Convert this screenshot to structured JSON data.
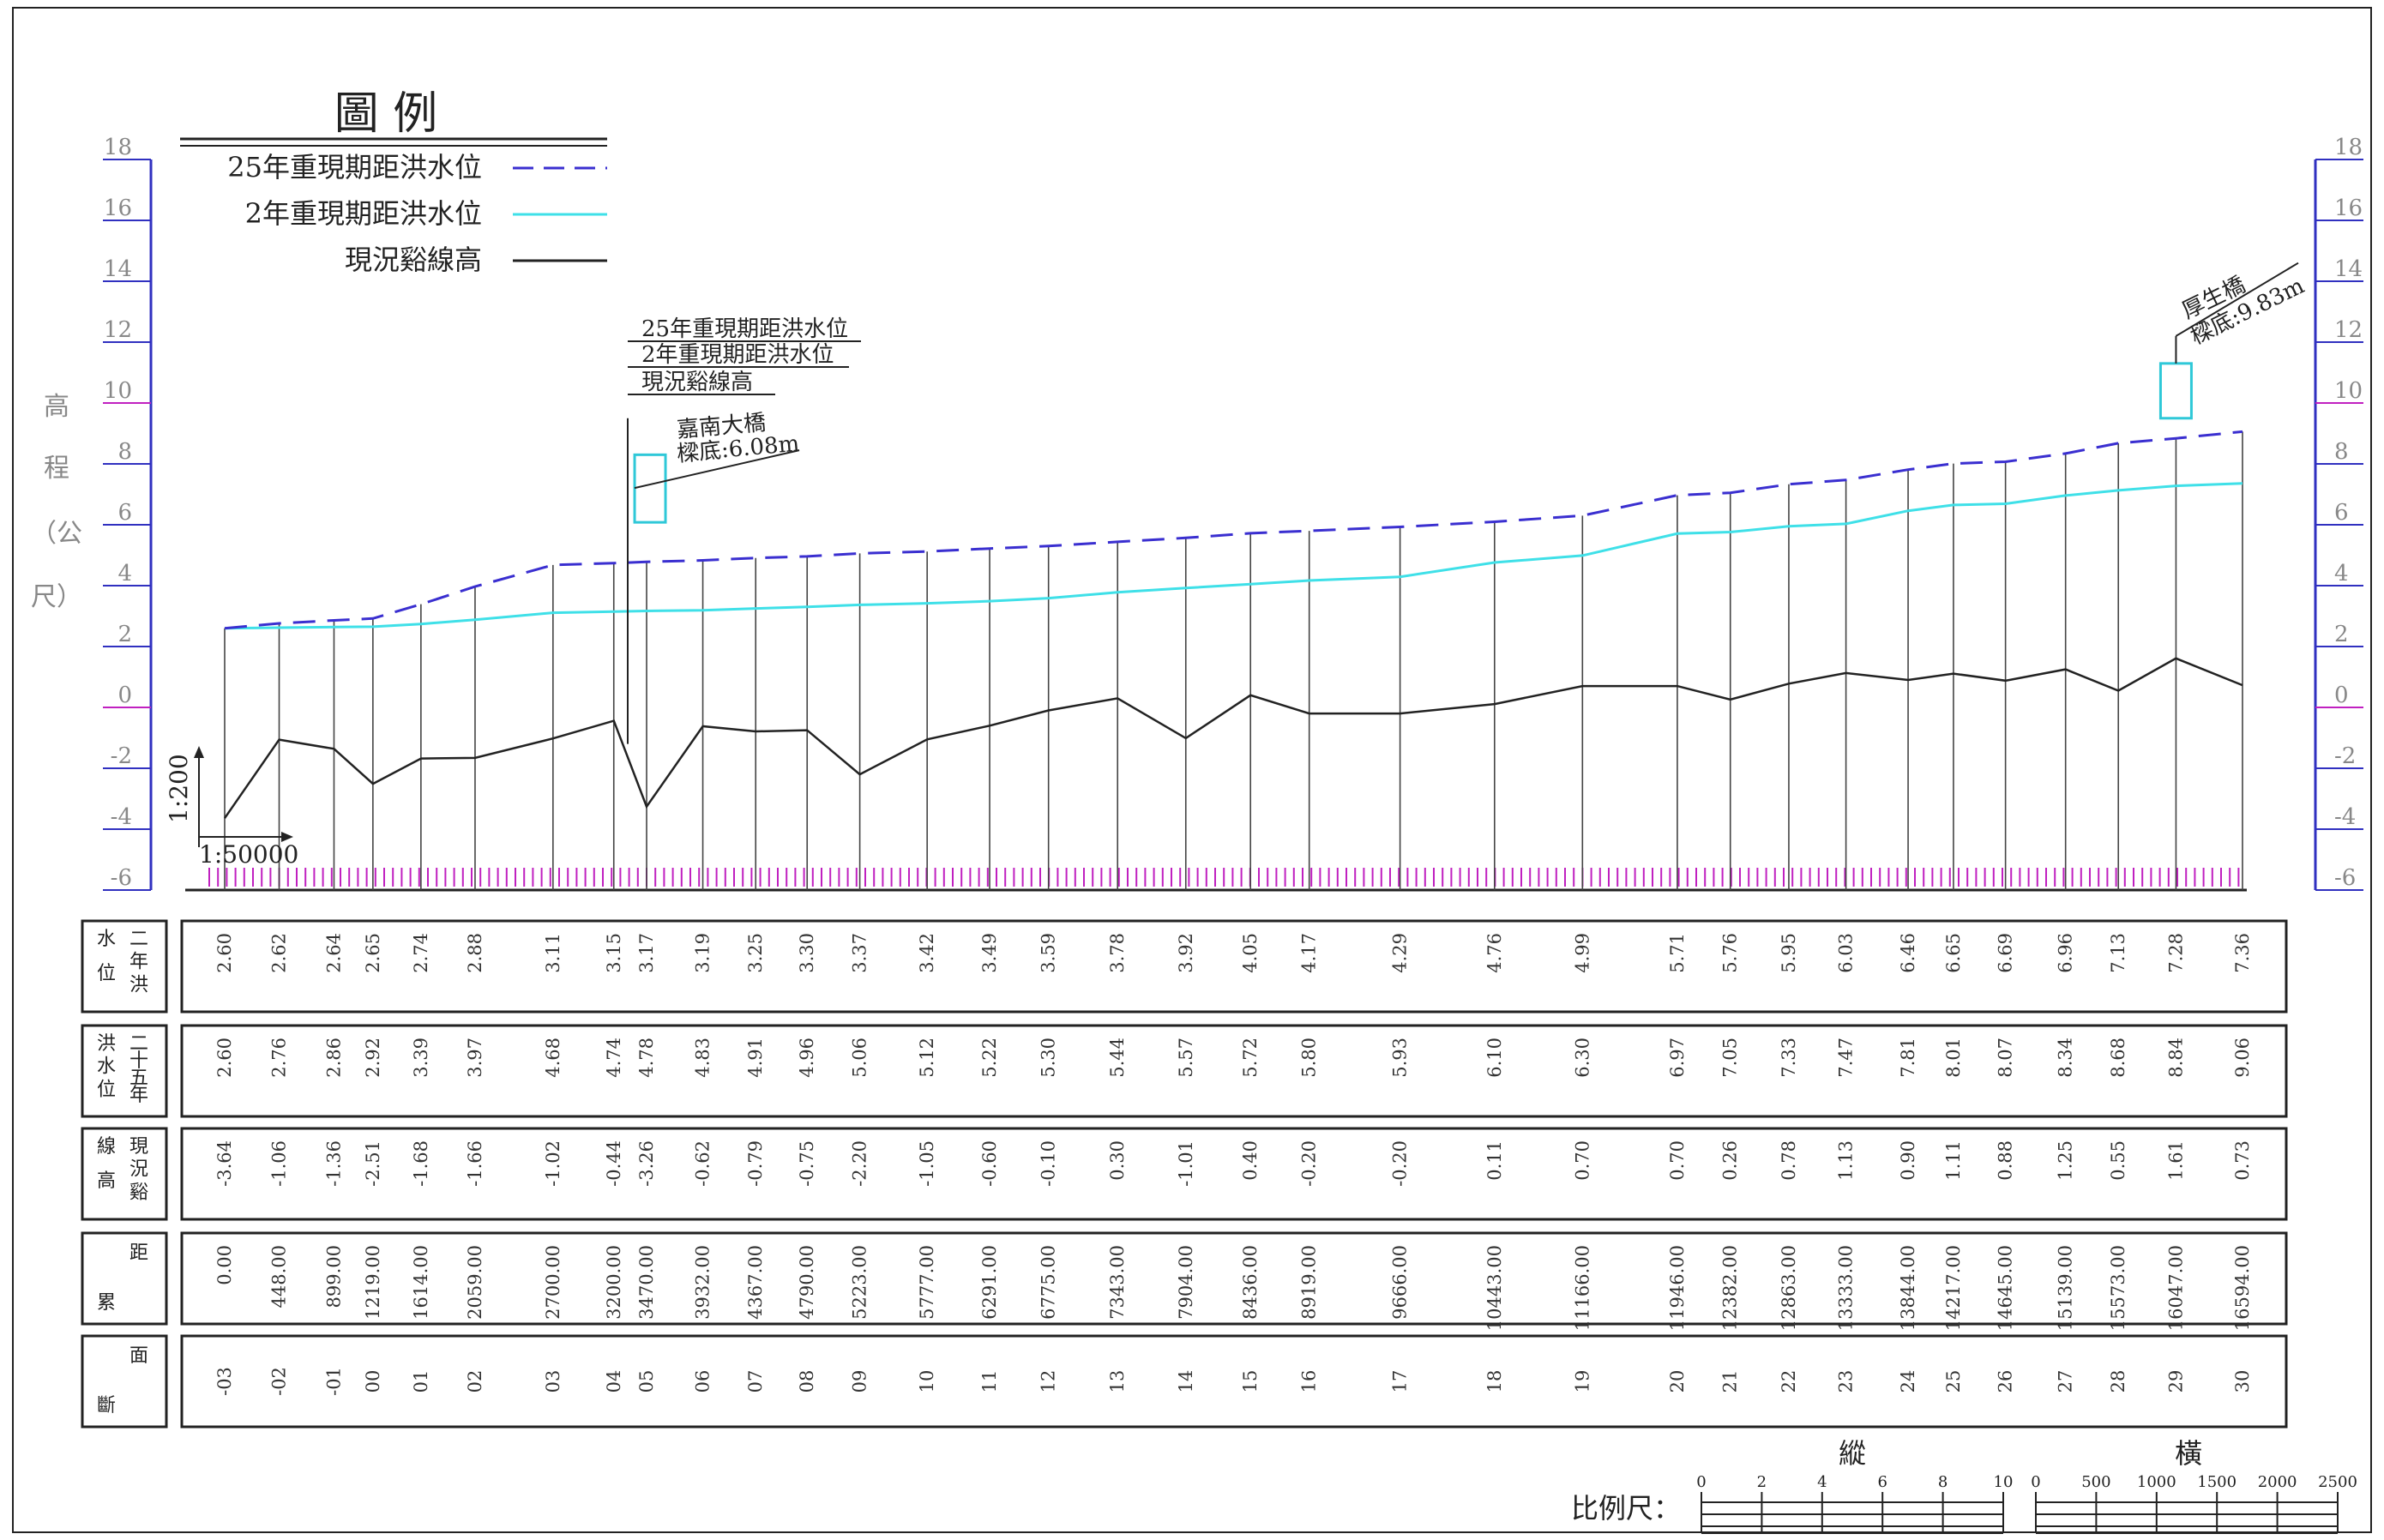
{
  "chart_data": {
    "type": "line",
    "legend": {
      "title": "圖 例",
      "entries": [
        {
          "label": "25年重現期距洪水位",
          "style": "dashed",
          "color": "#3a2fd0"
        },
        {
          "label": "2年重現期距洪水位",
          "style": "solid",
          "color": "#3fe0e8"
        },
        {
          "label": "現況谿線高",
          "style": "solid",
          "color": "#222222"
        }
      ]
    },
    "ylabel_chars": [
      "高",
      "程",
      "（公",
      "尺）"
    ],
    "ylim": [
      -6,
      18
    ],
    "yticks": [
      18,
      16,
      14,
      12,
      10,
      8,
      6,
      4,
      2,
      0,
      -2,
      -4,
      -6
    ],
    "scale_note": {
      "vertical": "1:200",
      "horizontal": "1:50000"
    },
    "sections": [
      "-03",
      "-02",
      "-01",
      "00",
      "01",
      "02",
      "03",
      "04",
      "05",
      "06",
      "07",
      "08",
      "09",
      "10",
      "11",
      "12",
      "13",
      "14",
      "15",
      "16",
      "17",
      "18",
      "19",
      "20",
      "21",
      "22",
      "23",
      "24",
      "25",
      "26",
      "27",
      "28",
      "29",
      "30"
    ],
    "distance": [
      "0.00",
      "448.00",
      "899.00",
      "1219.00",
      "1614.00",
      "2059.00",
      "2700.00",
      "3200.00",
      "3470.00",
      "3932.00",
      "4367.00",
      "4790.00",
      "5223.00",
      "5777.00",
      "6291.00",
      "6775.00",
      "7343.00",
      "7904.00",
      "8436.00",
      "8919.00",
      "9666.00",
      "10443.00",
      "11166.00",
      "11946.00",
      "12382.00",
      "12863.00",
      "13333.00",
      "13844.00",
      "14217.00",
      "14645.00",
      "15139.00",
      "15573.00",
      "16047.00",
      "16594.00"
    ],
    "x": [
      0,
      448,
      899,
      1219,
      1614,
      2059,
      2700,
      3200,
      3470,
      3932,
      4367,
      4790,
      5223,
      5777,
      6291,
      6775,
      7343,
      7904,
      8436,
      8919,
      9666,
      10443,
      11166,
      11946,
      12382,
      12863,
      13333,
      13844,
      14217,
      14645,
      15139,
      15573,
      16047,
      16594
    ],
    "series": [
      {
        "name": "二年洪水位",
        "values": [
          "2.60",
          "2.62",
          "2.64",
          "2.65",
          "2.74",
          "2.88",
          "3.11",
          "3.15",
          "3.17",
          "3.19",
          "3.25",
          "3.30",
          "3.37",
          "3.42",
          "3.49",
          "3.59",
          "3.78",
          "3.92",
          "4.05",
          "4.17",
          "4.29",
          "4.76",
          "4.99",
          "5.71",
          "5.76",
          "5.95",
          "6.03",
          "6.46",
          "6.65",
          "6.69",
          "6.96",
          "7.13",
          "7.28",
          "7.36"
        ]
      },
      {
        "name": "二十五年洪水位",
        "values": [
          "2.60",
          "2.76",
          "2.86",
          "2.92",
          "3.39",
          "3.97",
          "4.68",
          "4.74",
          "4.78",
          "4.83",
          "4.91",
          "4.96",
          "5.06",
          "5.12",
          "5.22",
          "5.30",
          "5.44",
          "5.57",
          "5.72",
          "5.80",
          "5.93",
          "6.10",
          "6.30",
          "6.97",
          "7.05",
          "7.33",
          "7.47",
          "7.81",
          "8.01",
          "8.07",
          "8.34",
          "8.68",
          "8.84",
          "9.06"
        ]
      },
      {
        "name": "現況谿線高",
        "values": [
          "-3.64",
          "-1.06",
          "-1.36",
          "-2.51",
          "-1.68",
          "-1.66",
          "-1.02",
          "-0.44",
          "-3.26",
          "-0.62",
          "-0.79",
          "-0.75",
          "-2.20",
          "-1.05",
          "-0.60",
          "-0.10",
          "0.30",
          "-1.01",
          "0.40",
          "-0.20",
          "-0.20",
          "0.11",
          "0.70",
          "0.70",
          "0.26",
          "0.78",
          "1.13",
          "0.90",
          "1.11",
          "0.88",
          "1.25",
          "0.55",
          "1.61",
          "0.73"
        ]
      }
    ],
    "row_labels": [
      [
        "二",
        "年",
        "洪",
        "水",
        "位"
      ],
      [
        "二",
        "十",
        "五",
        "年",
        "洪",
        "水",
        "位"
      ],
      [
        "現",
        "況",
        "谿",
        "線",
        "高"
      ],
      [
        "累",
        "距"
      ],
      [
        "斷",
        "面"
      ]
    ],
    "bridges": [
      {
        "name": "嘉南大橋",
        "note": "樑底:6.08m",
        "callout": [
          "25年重現期距洪水位",
          "2年重現期距洪水位",
          "現況谿線高"
        ]
      },
      {
        "name": "厚生橋",
        "note": "樑底:9.83m"
      }
    ],
    "scale_bar": {
      "label": "比例尺：",
      "vertical_title": "縱",
      "horizontal_title": "橫",
      "vertical_ticks": [
        "0",
        "2",
        "4",
        "6",
        "8",
        "10"
      ],
      "horizontal_ticks": [
        "0",
        "500",
        "1000",
        "1500",
        "2000",
        "2500"
      ]
    },
    "colors": {
      "flood25": "#3a2fd0",
      "flood2": "#3fe0e8",
      "thalweg": "#222222",
      "axis": "#3030c0",
      "magenta": "#c020c0",
      "bridge": "#2fc8d8"
    }
  }
}
